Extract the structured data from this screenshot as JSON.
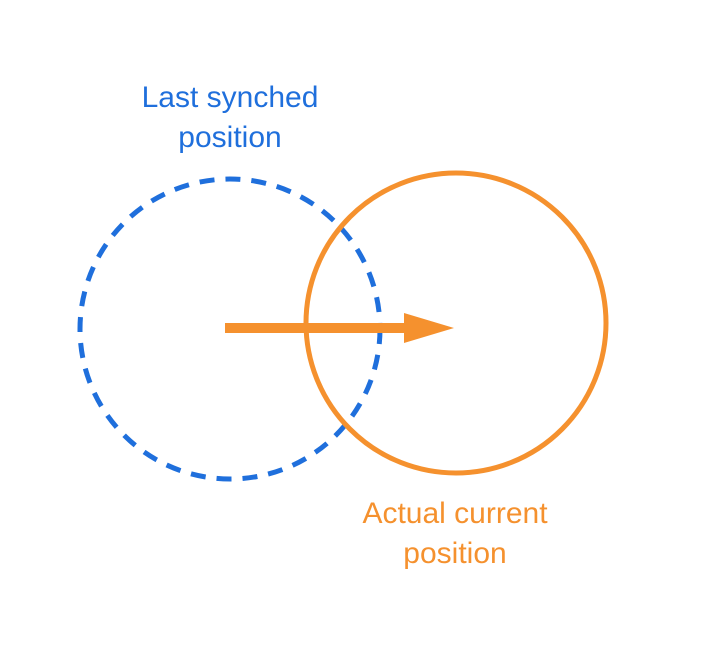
{
  "diagram": {
    "synched_label": {
      "line1": "Last synched",
      "line2": "position"
    },
    "actual_label": {
      "line1": "Actual current",
      "line2": "position"
    },
    "colors": {
      "synched": "#1f6fdc",
      "actual": "#f5912e",
      "background": "#ffffff"
    },
    "shapes": {
      "synched_circle_style": "dashed",
      "actual_circle_style": "solid",
      "arrow_direction": "right"
    }
  }
}
